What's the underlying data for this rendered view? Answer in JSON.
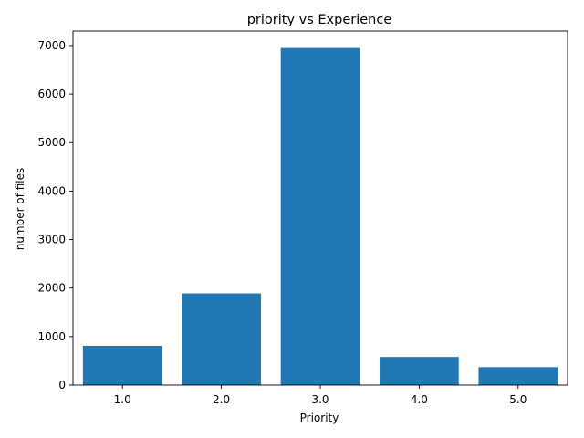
{
  "chart_data": {
    "type": "bar",
    "title": "priority vs Experience",
    "xlabel": "Priority",
    "ylabel": "number of files",
    "categories": [
      "1.0",
      "2.0",
      "3.0",
      "4.0",
      "5.0"
    ],
    "x": [
      1.0,
      2.0,
      3.0,
      4.0,
      5.0
    ],
    "values": [
      810,
      1890,
      6950,
      580,
      370
    ],
    "xlim": [
      0.5,
      5.5
    ],
    "ylim": [
      0,
      7300
    ],
    "yticks": [
      0,
      1000,
      2000,
      3000,
      4000,
      5000,
      6000,
      7000
    ],
    "grid": false,
    "bar_color": "#1f77b4"
  }
}
